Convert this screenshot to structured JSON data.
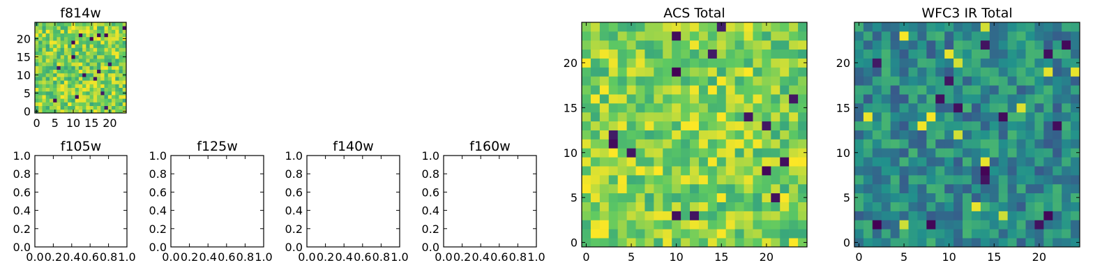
{
  "figure": {
    "background": "#ffffff"
  },
  "colormap": [
    "#440154",
    "#3b528b",
    "#21918c",
    "#5ec962",
    "#fde725"
  ],
  "chart_data": [
    {
      "id": "f814w",
      "type": "heatmap",
      "title": "f814w",
      "grid_size": 25,
      "seed": 814,
      "value_range": [
        0,
        1
      ],
      "distribution": "high",
      "xlim": [
        -0.5,
        24.5
      ],
      "ylim": [
        -0.5,
        24.5
      ],
      "xticks": [
        0,
        5,
        10,
        15,
        20
      ],
      "yticks": [
        0,
        5,
        10,
        15,
        20
      ]
    },
    {
      "id": "f105w",
      "type": "empty",
      "title": "f105w",
      "xlim": [
        0,
        1
      ],
      "ylim": [
        0,
        1
      ],
      "xticks": [
        "0.0",
        "0.2",
        "0.4",
        "0.6",
        "0.8",
        "1.0"
      ],
      "yticks": [
        "0.0",
        "0.2",
        "0.4",
        "0.6",
        "0.8",
        "1.0"
      ]
    },
    {
      "id": "f125w",
      "type": "empty",
      "title": "f125w",
      "xlim": [
        0,
        1
      ],
      "ylim": [
        0,
        1
      ],
      "xticks": [
        "0.0",
        "0.2",
        "0.4",
        "0.6",
        "0.8",
        "1.0"
      ],
      "yticks": [
        "0.0",
        "0.2",
        "0.4",
        "0.6",
        "0.8",
        "1.0"
      ]
    },
    {
      "id": "f140w",
      "type": "empty",
      "title": "f140w",
      "xlim": [
        0,
        1
      ],
      "ylim": [
        0,
        1
      ],
      "xticks": [
        "0.0",
        "0.2",
        "0.4",
        "0.6",
        "0.8",
        "1.0"
      ],
      "yticks": [
        "0.0",
        "0.2",
        "0.4",
        "0.6",
        "0.8",
        "1.0"
      ]
    },
    {
      "id": "f160w",
      "type": "empty",
      "title": "f160w",
      "xlim": [
        0,
        1
      ],
      "ylim": [
        0,
        1
      ],
      "xticks": [
        "0.0",
        "0.2",
        "0.4",
        "0.6",
        "0.8",
        "1.0"
      ],
      "yticks": [
        "0.0",
        "0.2",
        "0.4",
        "0.6",
        "0.8",
        "1.0"
      ]
    },
    {
      "id": "acs-total",
      "type": "heatmap",
      "title": "ACS Total",
      "grid_size": 25,
      "seed": 1234,
      "value_range": [
        0,
        1
      ],
      "distribution": "high",
      "xlim": [
        -0.5,
        24.5
      ],
      "ylim": [
        -0.5,
        24.5
      ],
      "xticks": [
        0,
        5,
        10,
        15,
        20
      ],
      "yticks": [
        0,
        5,
        10,
        15,
        20
      ]
    },
    {
      "id": "wfc3-ir-total",
      "type": "heatmap",
      "title": "WFC3 IR Total",
      "grid_size": 25,
      "seed": 4321,
      "value_range": [
        0,
        1
      ],
      "distribution": "mid",
      "xlim": [
        -0.5,
        24.5
      ],
      "ylim": [
        -0.5,
        24.5
      ],
      "xticks": [
        0,
        5,
        10,
        15,
        20
      ],
      "yticks": [
        0,
        5,
        10,
        15,
        20
      ]
    }
  ]
}
